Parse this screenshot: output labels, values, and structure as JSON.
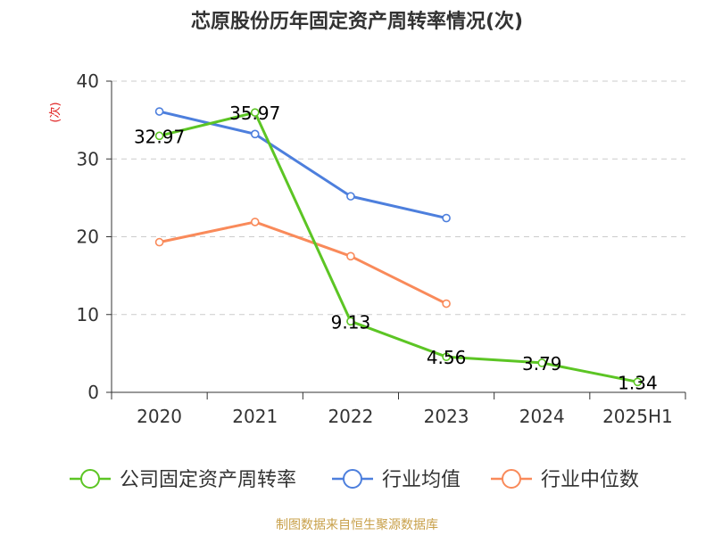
{
  "chart_data": {
    "type": "line",
    "title": "芯原股份历年固定资产周转率情况(次)",
    "ylabel": "(次)",
    "categories": [
      "2020",
      "2021",
      "2022",
      "2023",
      "2024",
      "2025H1"
    ],
    "ylim": [
      0,
      40
    ],
    "yticks": [
      0,
      10,
      20,
      30,
      40
    ],
    "grid": true,
    "legend_position": "bottom",
    "series": [
      {
        "name": "公司固定资产周转率",
        "color": "#5cc524",
        "values": [
          32.97,
          35.97,
          9.13,
          4.56,
          3.79,
          1.34
        ],
        "labels": true
      },
      {
        "name": "行业均值",
        "color": "#4d7fdd",
        "values": [
          36.1,
          33.2,
          25.2,
          22.4,
          null,
          null
        ],
        "labels": false
      },
      {
        "name": "行业中位数",
        "color": "#f98a5a",
        "values": [
          19.3,
          21.9,
          17.5,
          11.4,
          null,
          null
        ],
        "labels": false
      }
    ]
  },
  "source": "制图数据来自恒生聚源数据库",
  "colors": {
    "title": "#333333",
    "axis": "#333333",
    "grid": "#cccccc",
    "ylabel": "#e02020",
    "source": "#c8a04a"
  }
}
